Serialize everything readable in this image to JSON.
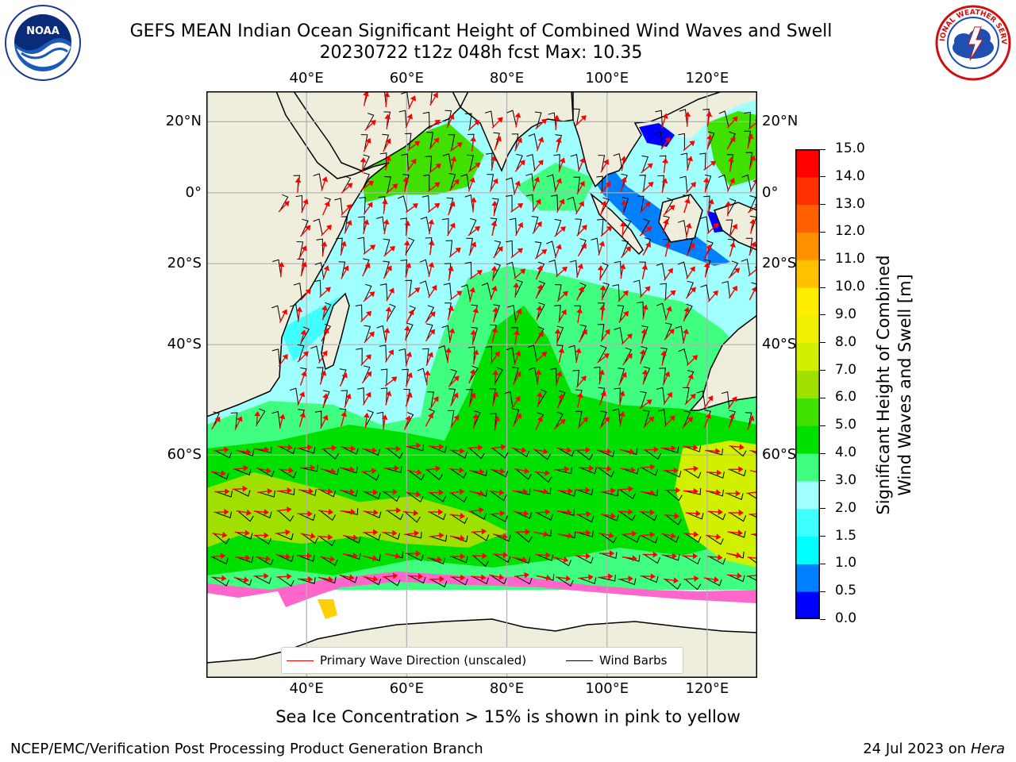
{
  "header": {
    "title_line1": "GEFS MEAN Indian Ocean Significant Height of Combined Wind Waves and Swell",
    "title_line2": "20230722 t12z 048h fcst   Max: 10.35"
  },
  "logos": {
    "left": {
      "name": "noaa-logo",
      "text": "NOAA",
      "ring_text": "NATIONAL OCEANIC AND ATMOSPHERIC ADMINISTRATION · U.S. DEPARTMENT OF COMMERCE"
    },
    "right": {
      "name": "nws-logo",
      "ring_text": "NATIONAL WEATHER SERVICE"
    }
  },
  "map": {
    "lon_labels": [
      "40°E",
      "60°E",
      "80°E",
      "100°E",
      "120°E"
    ],
    "lat_labels": [
      "20°N",
      "0°",
      "20°S",
      "40°S",
      "60°S"
    ],
    "lon_values": [
      40,
      60,
      80,
      100,
      120
    ],
    "lat_values": [
      20,
      0,
      -20,
      -40,
      -60
    ],
    "extent": {
      "lon": [
        20,
        130
      ],
      "lat": [
        -80,
        28
      ]
    }
  },
  "legend": {
    "wave_label": "Primary Wave Direction (unscaled)",
    "wind_label": "Wind Barbs",
    "wave_color": "#ff0000",
    "wind_color": "#000000"
  },
  "colorbar": {
    "label_line1": "Significant Height of Combined",
    "label_line2": "Wind Waves and Swell [m]",
    "ticks": [
      "0.0",
      "0.5",
      "1.0",
      "1.5",
      "2.0",
      "3.0",
      "4.0",
      "5.0",
      "6.0",
      "7.0",
      "8.0",
      "9.0",
      "10.0",
      "11.0",
      "12.0",
      "13.0",
      "14.0",
      "15.0"
    ],
    "colors": [
      "#0000ff",
      "#0080ff",
      "#00ffff",
      "#40ffff",
      "#a0ffff",
      "#40ff80",
      "#00e000",
      "#40e000",
      "#a0e000",
      "#d0f000",
      "#f0f000",
      "#ffee00",
      "#ffc000",
      "#ff9000",
      "#ff6000",
      "#ff3000",
      "#ff0000"
    ]
  },
  "annotation": {
    "sea_ice": "Sea Ice Concentration > 15% is shown in pink to yellow"
  },
  "footer": {
    "left": "NCEP/EMC/Verification Post Processing Product Generation Branch",
    "right_prefix": "24 Jul 2023 on ",
    "right_host": "Hera"
  }
}
